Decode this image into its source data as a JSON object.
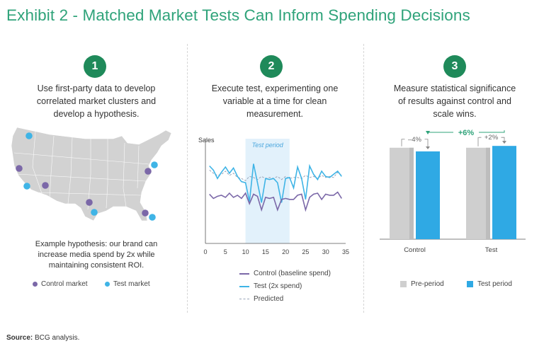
{
  "title": "Exhibit 2 - Matched Market Tests Can Inform Spending Decisions",
  "steps": [
    {
      "number": "1",
      "lines": [
        "Use first-party data to develop",
        "correlated market clusters and",
        "develop a hypothesis."
      ]
    },
    {
      "number": "2",
      "lines": [
        "Execute test, experimenting one",
        "variable at a time for clean",
        "measurement."
      ]
    },
    {
      "number": "3",
      "lines": [
        "Measure statistical significance",
        "of results against control and",
        "scale wins."
      ]
    }
  ],
  "hypothesis": [
    "Example hypothesis: our brand can",
    "increase media spend by 2x while",
    "maintaining consistent ROI."
  ],
  "map_legend": {
    "control": "Control market",
    "test": "Test market"
  },
  "colors": {
    "title": "#2fa37a",
    "step": "#1f8a5a",
    "control": "#7b68a8",
    "test": "#3fb4e6",
    "predicted": "#9aa4b8",
    "preperiod": "#cfcfcf",
    "testperiod": "#2fa9e4",
    "shade": "#e2f1fb",
    "map": "#d2d2d2"
  },
  "source": {
    "label": "Source:",
    "text": "BCG analysis."
  },
  "chart_data": [
    {
      "type": "line",
      "ylabel": "Sales",
      "shade_label": "Test period",
      "shade_range": [
        10,
        21
      ],
      "x_ticks": [
        0,
        5,
        10,
        15,
        20,
        25,
        30,
        35
      ],
      "xlim": [
        0,
        35
      ],
      "ylim": [
        0,
        10
      ],
      "x": [
        1,
        2,
        3,
        4,
        5,
        6,
        7,
        8,
        9,
        10,
        11,
        12,
        13,
        14,
        15,
        16,
        17,
        18,
        19,
        20,
        21,
        22,
        23,
        24,
        25,
        26,
        27,
        28,
        29,
        30,
        31,
        32,
        33,
        34
      ],
      "series": [
        {
          "name": "Control (baseline spend)",
          "values": [
            4.7,
            4.3,
            4.5,
            4.6,
            4.4,
            4.8,
            4.4,
            4.6,
            4.3,
            4.8,
            3.8,
            4.7,
            4.5,
            3.2,
            4.4,
            4.3,
            4.4,
            3.2,
            4.2,
            4.3,
            4.2,
            4.2,
            4.6,
            4.7,
            3.2,
            4.4,
            4.7,
            4.8,
            4.2,
            4.7,
            4.6,
            4.6,
            4.9,
            4.3
          ]
        },
        {
          "name": "Test (2x spend)",
          "values": [
            7.4,
            7.0,
            6.2,
            6.8,
            7.3,
            6.7,
            7.2,
            6.4,
            5.9,
            5.8,
            4.0,
            7.6,
            5.8,
            3.9,
            6.2,
            6.1,
            6.2,
            5.8,
            3.9,
            6.2,
            6.3,
            5.3,
            7.3,
            6.2,
            4.2,
            7.4,
            6.6,
            6.1,
            6.9,
            6.4,
            6.3,
            6.6,
            6.9,
            6.4
          ]
        },
        {
          "name": "Predicted",
          "values": [
            7.0,
            6.7,
            6.5,
            6.6,
            6.9,
            6.5,
            6.7,
            6.3,
            6.2,
            6.0,
            6.4,
            6.3,
            6.1,
            6.4,
            6.2,
            6.3,
            6.2,
            6.4,
            6.1,
            6.4,
            6.2,
            6.3,
            6.3,
            6.2,
            6.5,
            6.3,
            6.4,
            6.2,
            6.5,
            6.3,
            6.4,
            6.3,
            6.8,
            6.5
          ]
        }
      ]
    },
    {
      "type": "bar",
      "categories": [
        "Control",
        "Test"
      ],
      "series": [
        {
          "name": "Pre-period",
          "values": [
            100,
            100
          ]
        },
        {
          "name": "Test period",
          "values": [
            96,
            102
          ]
        }
      ],
      "ylim": [
        0,
        130
      ],
      "annotations": {
        "control_change": "–4%",
        "test_change": "+2%",
        "difference": "+6%"
      }
    }
  ]
}
